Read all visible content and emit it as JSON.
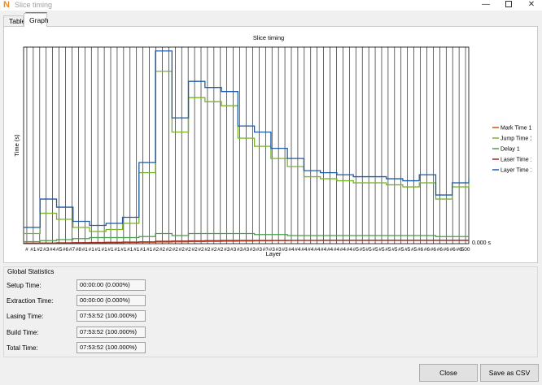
{
  "window": {
    "title": "Slice timing",
    "app_icon": "N"
  },
  "tabs": [
    {
      "label": "Table",
      "selected": false
    },
    {
      "label": "Graph",
      "selected": true
    }
  ],
  "chart_data": {
    "type": "line",
    "title": "Slice timing",
    "xlabel": "Layer",
    "ylabel": "Time (s)",
    "y_tick_label": "0.000 s",
    "x_tick_labels": [
      "#",
      "#1",
      "#2",
      "#3",
      "#4",
      "#5",
      "#6",
      "#7",
      "#8",
      "#1",
      "#1",
      "#1",
      "#1",
      "#1",
      "#1",
      "#1",
      "#1",
      "#1",
      "#1",
      "#1",
      "#2",
      "#2",
      "#2",
      "#2",
      "#2",
      "#2",
      "#2",
      "#2",
      "#2",
      "#2",
      "#2",
      "#3",
      "#3",
      "#3",
      "#3",
      "#3",
      "#3",
      "#3",
      "#3",
      "#3",
      "#3",
      "#4",
      "#4",
      "#4",
      "#4",
      "#4",
      "#4",
      "#4",
      "#4",
      "#4",
      "#4",
      "#5",
      "#5",
      "#5",
      "#5",
      "#5",
      "#5",
      "#5",
      "#5",
      "#5",
      "#5",
      "#6",
      "#6",
      "#6",
      "#6",
      "#6",
      "#6",
      "#6",
      "500"
    ],
    "legend_position": "right",
    "grid": "vertical",
    "x": [
      0,
      20,
      40,
      60,
      80,
      100,
      120,
      140,
      160,
      180,
      200,
      220,
      240,
      260,
      280,
      300,
      320,
      340,
      360,
      380,
      400,
      420,
      440,
      460,
      480,
      500,
      520,
      540
    ],
    "series": [
      {
        "name": "Mark Time 1",
        "color": "#c8501e",
        "values": [
          0.3,
          0.3,
          0.4,
          0.4,
          0.4,
          0.5,
          0.6,
          0.7,
          0.8,
          0.9,
          1.0,
          1.1,
          1.2,
          1.3,
          1.4,
          1.5,
          1.6,
          1.6,
          1.7,
          1.7,
          1.7,
          1.7,
          1.7,
          1.7,
          1.7,
          1.7,
          1.7,
          1.7
        ]
      },
      {
        "name": "Jump Time 1",
        "color": "#78b428",
        "values": [
          5,
          15,
          12,
          8,
          6,
          7,
          10,
          35,
          85,
          55,
          72,
          70,
          68,
          52,
          48,
          42,
          38,
          33,
          32,
          31,
          30,
          30,
          29,
          28,
          30,
          22,
          28,
          30
        ]
      },
      {
        "name": "Delay 1",
        "color": "#46a046",
        "values": [
          1,
          1.5,
          2,
          2.5,
          3,
          3,
          3,
          3.5,
          5,
          4,
          5,
          5,
          5,
          5,
          4.5,
          4.5,
          4,
          4,
          4,
          4,
          4,
          4,
          4,
          4,
          4,
          3.5,
          3.5,
          3.5
        ]
      },
      {
        "name": "Laser Time 1",
        "color": "#a0281e",
        "values": [
          0.2,
          0.3,
          0.4,
          0.5,
          0.6,
          0.7,
          0.8,
          0.9,
          1.2,
          1.3,
          1.4,
          1.5,
          1.6,
          1.6,
          1.6,
          1.6,
          1.6,
          1.6,
          1.6,
          1.6,
          1.6,
          1.6,
          1.6,
          1.6,
          1.6,
          1.6,
          1.6,
          1.6
        ]
      },
      {
        "name": "Layer Time 1",
        "color": "#1e5aaa",
        "values": [
          8,
          22,
          18,
          11,
          9,
          10,
          13,
          40,
          95,
          62,
          80,
          77,
          75,
          58,
          55,
          47,
          42,
          36,
          35,
          34,
          33,
          33,
          32,
          31,
          34,
          24,
          30,
          32
        ]
      }
    ]
  },
  "global_statistics": {
    "title": "Global Statistics",
    "rows": [
      {
        "label": "Setup Time:",
        "value": "00:00:00 (0.000%)"
      },
      {
        "label": "Extraction Time:",
        "value": "00:00:00 (0.000%)"
      },
      {
        "label": "Lasing Time:",
        "value": "07:53:52 (100.000%)"
      },
      {
        "label": "Build Time:",
        "value": "07:53:52 (100.000%)"
      },
      {
        "label": "Total Time:",
        "value": "07:53:52 (100.000%)"
      }
    ]
  },
  "buttons": {
    "close": "Close",
    "save_csv": "Save as CSV"
  }
}
